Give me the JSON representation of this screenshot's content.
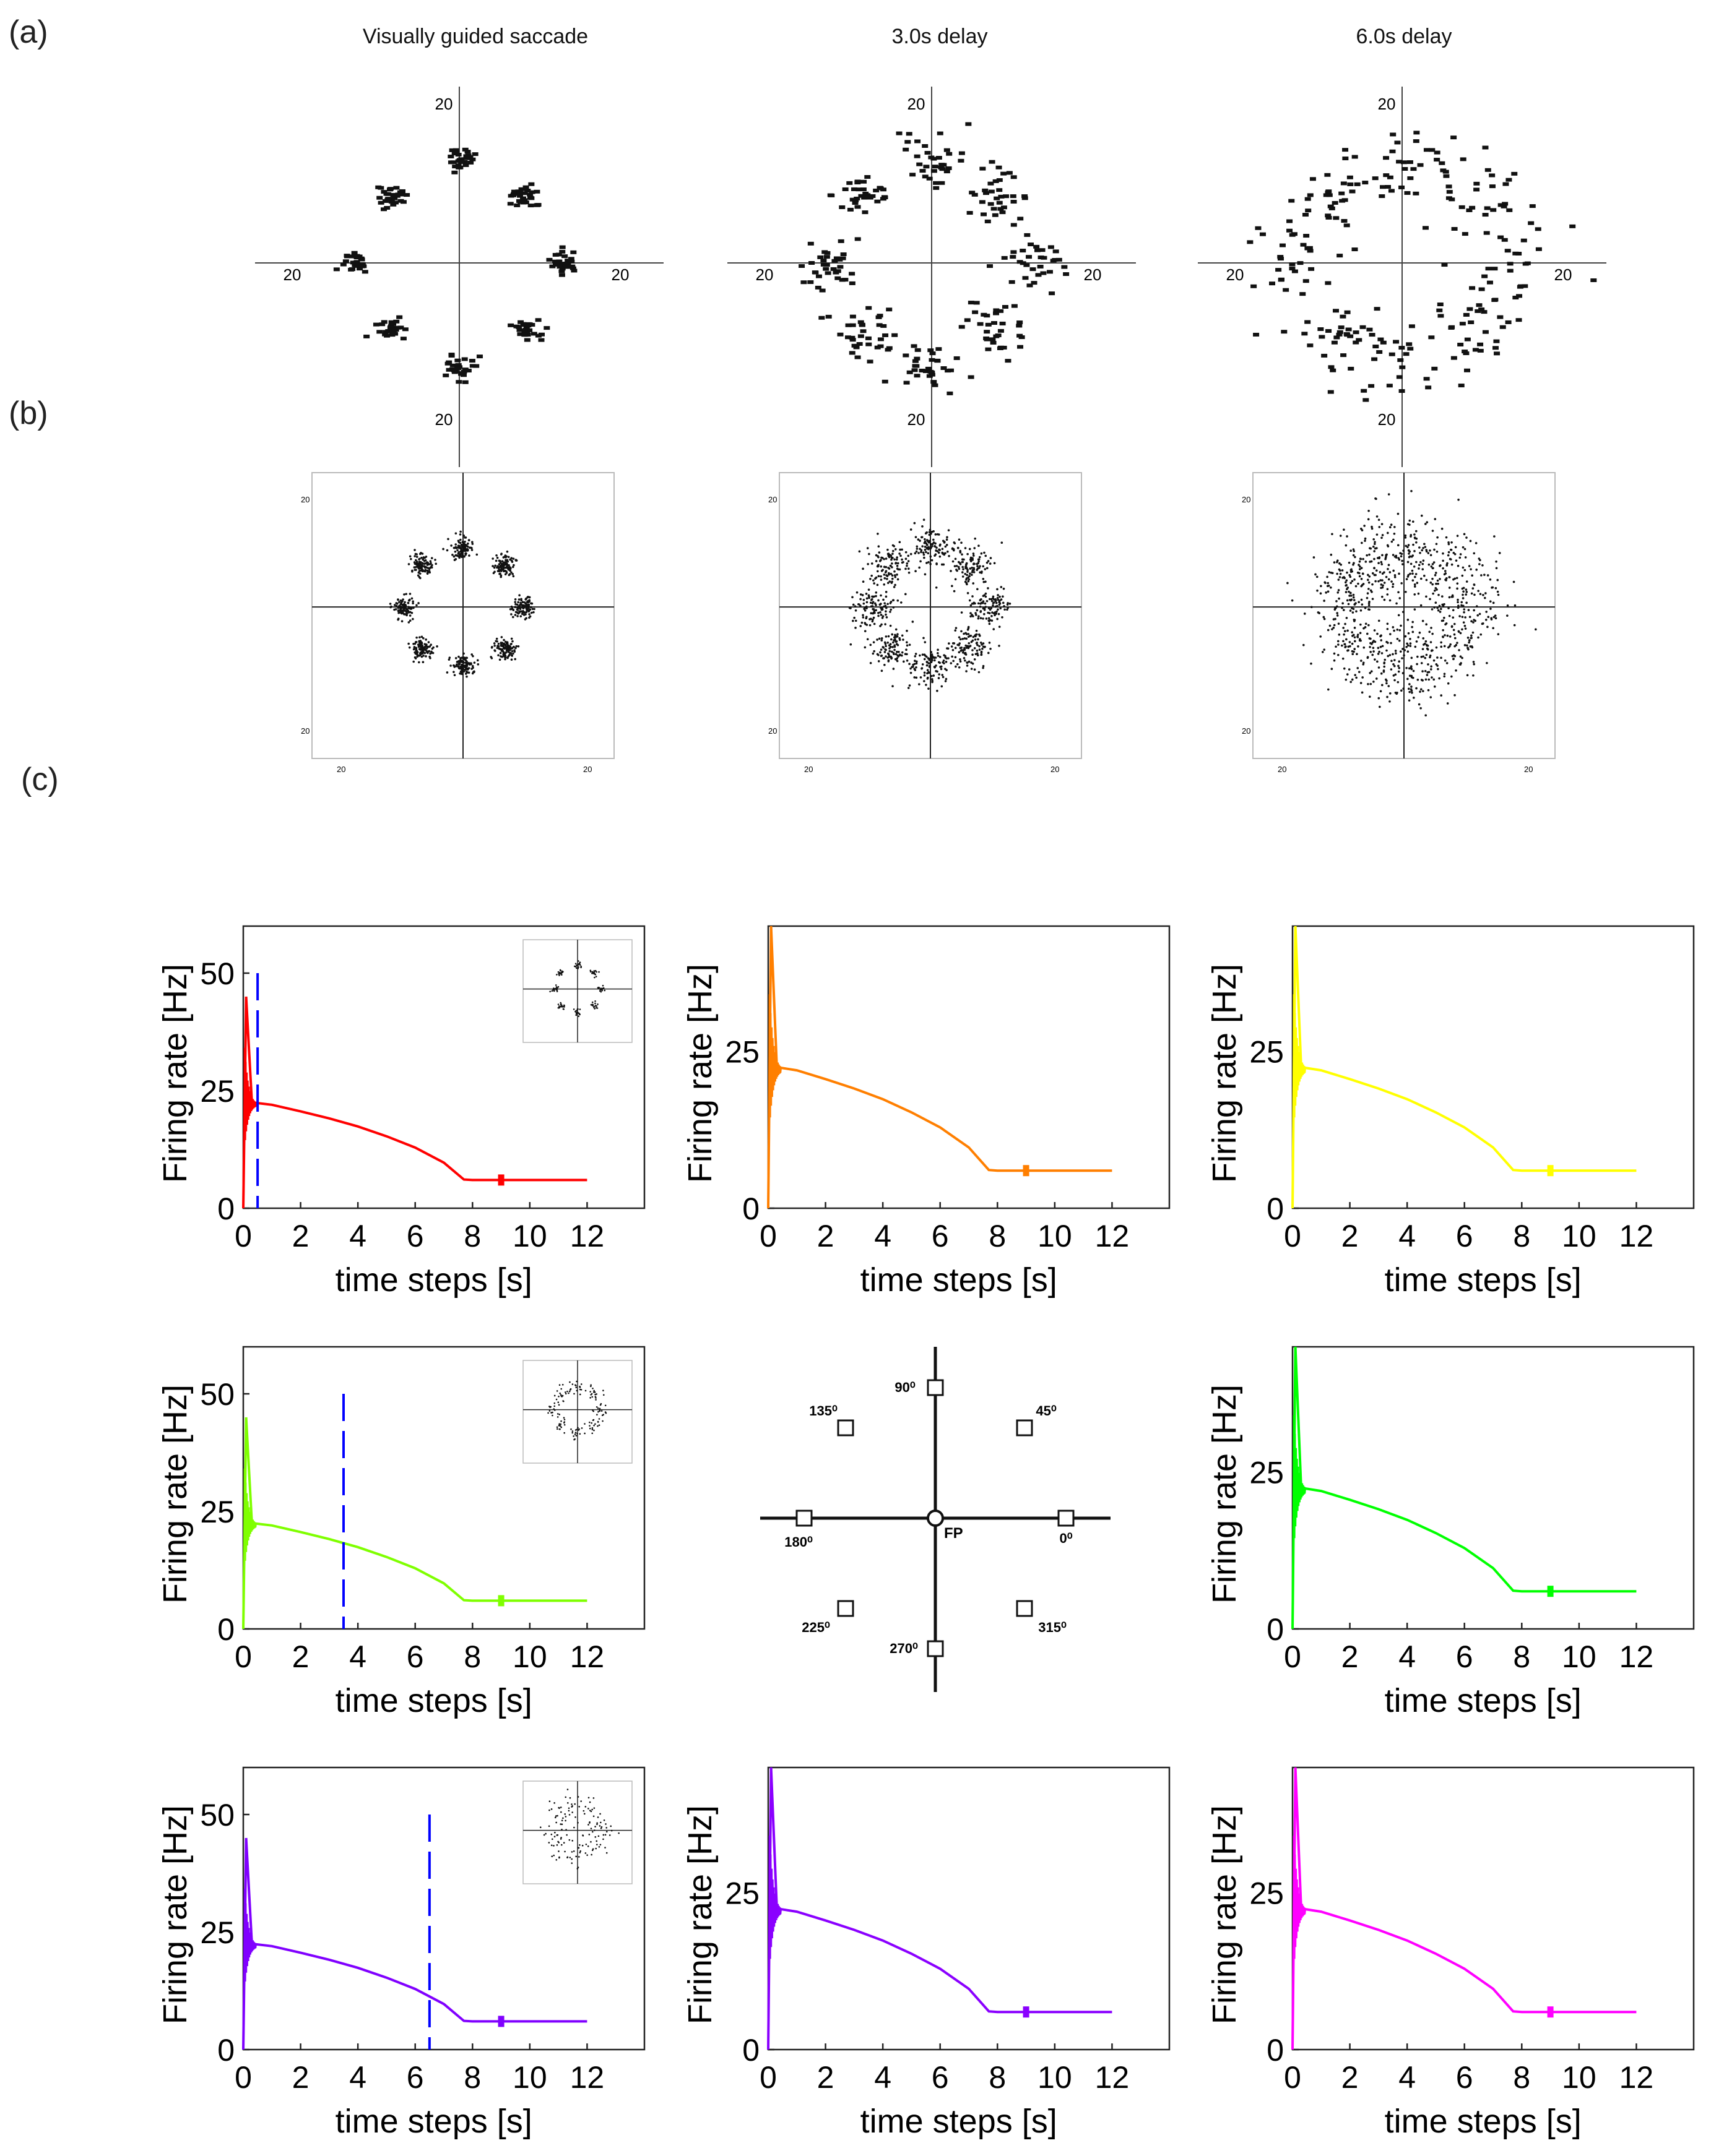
{
  "panel_labels": {
    "a": "(a)",
    "b": "(b)",
    "c": "(c)"
  },
  "column_titles": [
    "Visually guided saccade",
    "3.0s delay",
    "6.0s delay"
  ],
  "colors": {
    "red": "#ff0000",
    "orange": "#ff7f00",
    "yellow": "#ffff00",
    "lime": "#7fff00",
    "green": "#00ff00",
    "violet": "#8000ff",
    "purple": "#8a00ff",
    "magenta": "#ff00ff",
    "marker": "#0000ff"
  },
  "target_diagram": {
    "targets": [
      "0⁰",
      "45⁰",
      "90⁰",
      "135⁰",
      "180⁰",
      "225⁰",
      "270⁰",
      "315⁰"
    ],
    "fixation_label": "FP"
  },
  "chart_data": [
    {
      "type": "scatter",
      "panel": "a",
      "title": "Visually guided saccade",
      "tick_labels": {
        "left": "20",
        "right": "20",
        "top": "20",
        "bottom": "20"
      },
      "cluster_spread": 0.055,
      "points_per_target": 30
    },
    {
      "type": "scatter",
      "panel": "a",
      "title": "3.0s delay",
      "tick_labels": {
        "left": "20",
        "right": "20",
        "top": "20",
        "bottom": "20"
      },
      "cluster_spread": 0.12,
      "points_per_target": 34
    },
    {
      "type": "scatter",
      "panel": "a",
      "title": "6.0s delay",
      "tick_labels": {
        "left": "20",
        "right": "20",
        "top": "20",
        "bottom": "20"
      },
      "cluster_spread": 0.2,
      "points_per_target": 30
    },
    {
      "type": "scatter",
      "panel": "b",
      "tick_labels": {
        "left_top": "20",
        "left_bottom": "20",
        "bottom_left": "20",
        "bottom_right": "20"
      },
      "cluster_spread": 0.05,
      "points_per_target": 110
    },
    {
      "type": "scatter",
      "panel": "b",
      "tick_labels": {
        "left_top": "20",
        "left_bottom": "20",
        "bottom_left": "20",
        "bottom_right": "20"
      },
      "cluster_spread": 0.1,
      "points_per_target": 110
    },
    {
      "type": "scatter",
      "panel": "b",
      "tick_labels": {
        "left_top": "20",
        "left_bottom": "20",
        "bottom_left": "20",
        "bottom_right": "20"
      },
      "cluster_spread": 0.2,
      "points_per_target": 110
    },
    {
      "type": "line",
      "panel": "c",
      "color": "red",
      "xlabel": "time steps [s]",
      "ylabel": "Firing rate [Hz]",
      "xlim": [
        0,
        14
      ],
      "ylim": [
        0,
        60
      ],
      "x_ticks": [
        "0",
        "2",
        "4",
        "6",
        "8",
        "10",
        "12"
      ],
      "y_ticks": [
        "0",
        "25",
        "50"
      ],
      "cue_time": 0.5,
      "inset_spread": 0.05,
      "series": {
        "x": [
          0,
          0.1,
          0.3,
          1,
          2,
          3,
          4,
          5,
          6,
          7,
          7.7,
          8,
          9,
          10,
          11,
          12
        ],
        "y": [
          0,
          45,
          22.5,
          22,
          20.6,
          19.1,
          17.4,
          15.3,
          12.9,
          9.7,
          6.1,
          6,
          6,
          6,
          6,
          6
        ]
      }
    },
    {
      "type": "line",
      "panel": "c",
      "color": "orange",
      "xlabel": "time steps [s]",
      "ylabel": "Firing rate [Hz]",
      "xlim": [
        0,
        14
      ],
      "ylim": [
        0,
        45
      ],
      "x_ticks": [
        "0",
        "2",
        "4",
        "6",
        "8",
        "10",
        "12"
      ],
      "y_ticks": [
        "0",
        "25"
      ],
      "series": {
        "x": [
          0,
          0.1,
          0.3,
          1,
          2,
          3,
          4,
          5,
          6,
          7,
          7.7,
          8,
          9,
          10,
          11,
          12
        ],
        "y": [
          0,
          45,
          22.5,
          22,
          20.6,
          19.1,
          17.4,
          15.3,
          12.9,
          9.7,
          6.1,
          6,
          6,
          6,
          6,
          6
        ]
      }
    },
    {
      "type": "line",
      "panel": "c",
      "color": "yellow",
      "xlabel": "time steps [s]",
      "ylabel": "Firing rate [Hz]",
      "xlim": [
        0,
        14
      ],
      "ylim": [
        0,
        45
      ],
      "x_ticks": [
        "0",
        "2",
        "4",
        "6",
        "8",
        "10",
        "12"
      ],
      "y_ticks": [
        "0",
        "25"
      ],
      "series": {
        "x": [
          0,
          0.1,
          0.3,
          1,
          2,
          3,
          4,
          5,
          6,
          7,
          7.7,
          8,
          9,
          10,
          11,
          12
        ],
        "y": [
          0,
          45,
          22.5,
          22,
          20.6,
          19.1,
          17.4,
          15.3,
          12.9,
          9.7,
          6.1,
          6,
          6,
          6,
          6,
          6
        ]
      }
    },
    {
      "type": "line",
      "panel": "c",
      "color": "lime",
      "xlabel": "time steps [s]",
      "ylabel": "Firing rate [Hz]",
      "xlim": [
        0,
        14
      ],
      "ylim": [
        0,
        60
      ],
      "x_ticks": [
        "0",
        "2",
        "4",
        "6",
        "8",
        "10",
        "12"
      ],
      "y_ticks": [
        "0",
        "25",
        "50"
      ],
      "cue_time": 3.5,
      "inset_spread": 0.1,
      "series": {
        "x": [
          0,
          0.1,
          0.3,
          1,
          2,
          3,
          4,
          5,
          6,
          7,
          7.7,
          8,
          9,
          10,
          11,
          12
        ],
        "y": [
          0,
          45,
          22.5,
          22,
          20.6,
          19.1,
          17.4,
          15.3,
          12.9,
          9.7,
          6.1,
          6,
          6,
          6,
          6,
          6
        ]
      }
    },
    {
      "type": "line",
      "panel": "c",
      "color": "green",
      "xlabel": "time steps [s]",
      "ylabel": "Firing rate [Hz]",
      "xlim": [
        0,
        14
      ],
      "ylim": [
        0,
        45
      ],
      "x_ticks": [
        "0",
        "2",
        "4",
        "6",
        "8",
        "10",
        "12"
      ],
      "y_ticks": [
        "0",
        "25"
      ],
      "series": {
        "x": [
          0,
          0.1,
          0.3,
          1,
          2,
          3,
          4,
          5,
          6,
          7,
          7.7,
          8,
          9,
          10,
          11,
          12
        ],
        "y": [
          0,
          45,
          22.5,
          22,
          20.6,
          19.1,
          17.4,
          15.3,
          12.9,
          9.7,
          6.1,
          6,
          6,
          6,
          6,
          6
        ]
      }
    },
    {
      "type": "line",
      "panel": "c",
      "color": "violet",
      "xlabel": "time steps [s]",
      "ylabel": "Firing rate [Hz]",
      "xlim": [
        0,
        14
      ],
      "ylim": [
        0,
        60
      ],
      "x_ticks": [
        "0",
        "2",
        "4",
        "6",
        "8",
        "10",
        "12"
      ],
      "y_ticks": [
        "0",
        "25",
        "50"
      ],
      "cue_time": 6.5,
      "inset_spread": 0.2,
      "series": {
        "x": [
          0,
          0.1,
          0.3,
          1,
          2,
          3,
          4,
          5,
          6,
          7,
          7.7,
          8,
          9,
          10,
          11,
          12
        ],
        "y": [
          0,
          45,
          22.5,
          22,
          20.6,
          19.1,
          17.4,
          15.3,
          12.9,
          9.7,
          6.1,
          6,
          6,
          6,
          6,
          6
        ]
      }
    },
    {
      "type": "line",
      "panel": "c",
      "color": "purple",
      "xlabel": "time steps [s]",
      "ylabel": "Firing rate [Hz]",
      "xlim": [
        0,
        14
      ],
      "ylim": [
        0,
        45
      ],
      "x_ticks": [
        "0",
        "2",
        "4",
        "6",
        "8",
        "10",
        "12"
      ],
      "y_ticks": [
        "0",
        "25"
      ],
      "series": {
        "x": [
          0,
          0.1,
          0.3,
          1,
          2,
          3,
          4,
          5,
          6,
          7,
          7.7,
          8,
          9,
          10,
          11,
          12
        ],
        "y": [
          0,
          45,
          22.5,
          22,
          20.6,
          19.1,
          17.4,
          15.3,
          12.9,
          9.7,
          6.1,
          6,
          6,
          6,
          6,
          6
        ]
      }
    },
    {
      "type": "line",
      "panel": "c",
      "color": "magenta",
      "xlabel": "time steps [s]",
      "ylabel": "Firing rate [Hz]",
      "xlim": [
        0,
        14
      ],
      "ylim": [
        0,
        45
      ],
      "x_ticks": [
        "0",
        "2",
        "4",
        "6",
        "8",
        "10",
        "12"
      ],
      "y_ticks": [
        "0",
        "25"
      ],
      "series": {
        "x": [
          0,
          0.1,
          0.3,
          1,
          2,
          3,
          4,
          5,
          6,
          7,
          7.7,
          8,
          9,
          10,
          11,
          12
        ],
        "y": [
          0,
          45,
          22.5,
          22,
          20.6,
          19.1,
          17.4,
          15.3,
          12.9,
          9.7,
          6.1,
          6,
          6,
          6,
          6,
          6
        ]
      }
    }
  ]
}
